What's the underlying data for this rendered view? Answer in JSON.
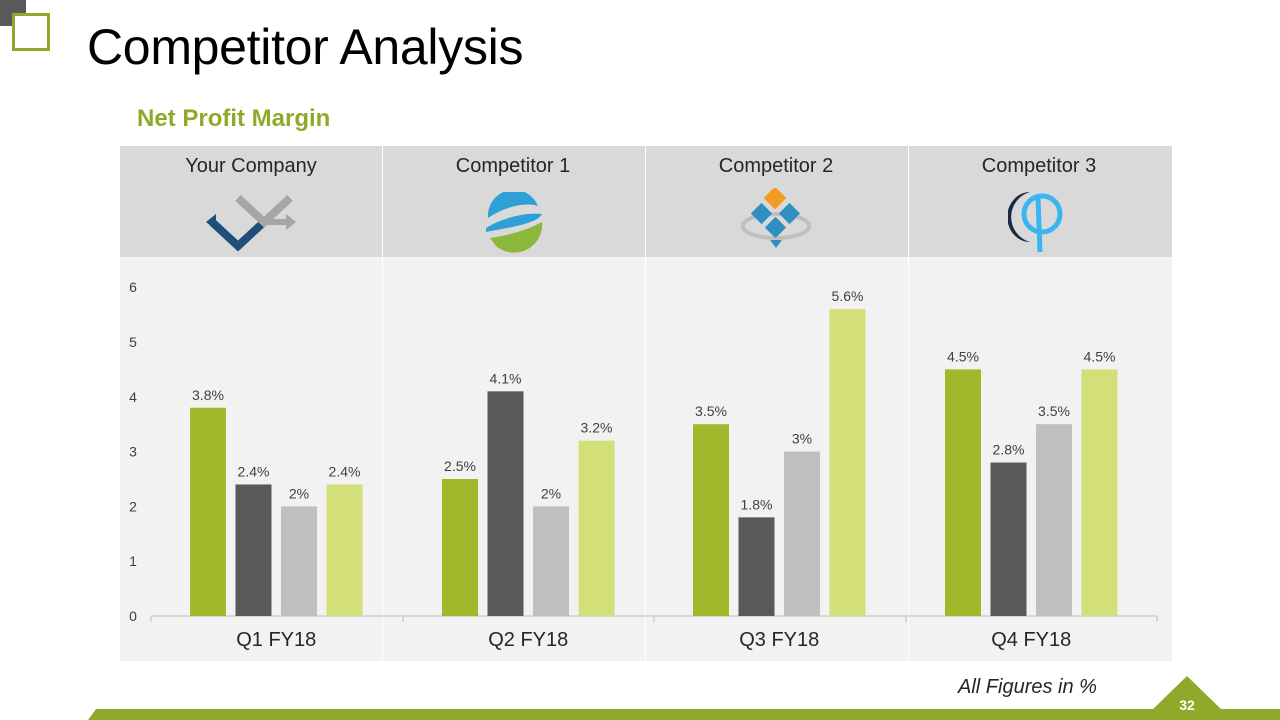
{
  "slide": {
    "title": "Competitor Analysis",
    "subtitle": "Net Profit Margin",
    "footnote": "All Figures in %",
    "page_number": "32"
  },
  "companies": [
    {
      "name": "Your Company",
      "logo": "diamond-arrows-icon"
    },
    {
      "name": "Competitor 1",
      "logo": "sphere-swoosh-icon"
    },
    {
      "name": "Competitor 2",
      "logo": "diamond-squares-icon"
    },
    {
      "name": "Competitor 3",
      "logo": "crescent-circle-icon"
    }
  ],
  "colors": {
    "accent": "#8faa2a",
    "your_company": "#a2b82a",
    "competitor_1": "#595959",
    "competitor_2": "#bfbfbf",
    "competitor_3": "#d3e07a"
  },
  "chart_data": {
    "type": "bar",
    "title": "Net Profit Margin",
    "categories": [
      "Q1 FY18",
      "Q2 FY18",
      "Q3 FY18",
      "Q4 FY18"
    ],
    "series": [
      {
        "name": "Your Company",
        "values": [
          3.8,
          2.5,
          3.5,
          4.5
        ],
        "labels": [
          "3.8%",
          "2.5%",
          "3.5%",
          "4.5%"
        ]
      },
      {
        "name": "Competitor 1",
        "values": [
          2.4,
          4.1,
          1.8,
          2.8
        ],
        "labels": [
          "2.4%",
          "4.1%",
          "1.8%",
          "2.8%"
        ]
      },
      {
        "name": "Competitor 2",
        "values": [
          2,
          2,
          3,
          3.5
        ],
        "labels": [
          "2%",
          "2%",
          "3%",
          "3.5%"
        ]
      },
      {
        "name": "Competitor 3",
        "values": [
          2.4,
          3.2,
          5.6,
          4.5
        ],
        "labels": [
          "2.4%",
          "3.2%",
          "5.6%",
          "4.5%"
        ]
      }
    ],
    "ylim": [
      0,
      6
    ],
    "yticks": [
      0,
      1,
      2,
      3,
      4,
      5,
      6
    ],
    "xlabel": "",
    "ylabel": "",
    "grid": false
  }
}
